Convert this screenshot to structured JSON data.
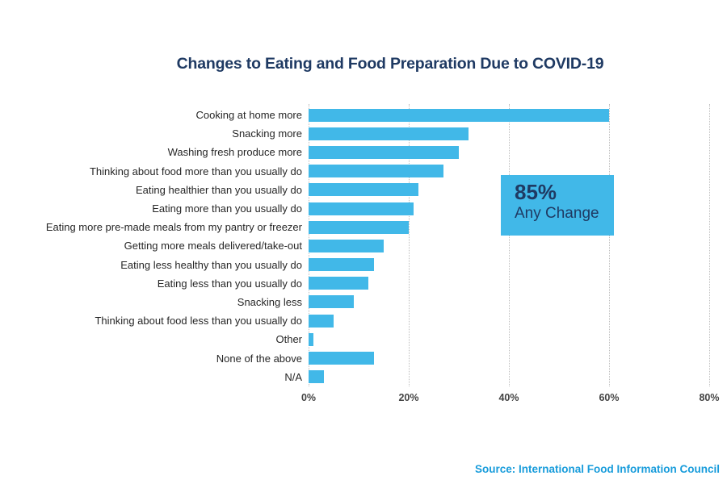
{
  "title": "Changes to Eating and Food Preparation Due to COVID-19",
  "source": "Source: International Food Information Council",
  "callout": {
    "value": "85%",
    "label": "Any Change"
  },
  "colors": {
    "bar": "#41b8e8",
    "title": "#1f3a63",
    "label": "#262626",
    "tick": "#444444",
    "grid": "#bdbdbd",
    "callout_text": "#1f3a63",
    "source": "#189cdb"
  },
  "chart_data": {
    "type": "bar",
    "orientation": "horizontal",
    "title": "Changes to Eating and Food Preparation Due to COVID-19",
    "categories": [
      "Cooking at home more",
      "Snacking more",
      "Washing fresh produce more",
      "Thinking about food more than you usually do",
      "Eating healthier than you usually do",
      "Eating more than you usually do",
      "Eating more pre-made meals from my pantry or freezer",
      "Getting more meals delivered/take-out",
      "Eating less healthy than you usually do",
      "Eating less than you usually do",
      "Snacking less",
      "Thinking about food less than you usually do",
      "Other",
      "None of the above",
      "N/A"
    ],
    "values": [
      60,
      32,
      30,
      27,
      22,
      21,
      20,
      15,
      13,
      12,
      9,
      5,
      1,
      13,
      3
    ],
    "unit": "%",
    "xlabel": "",
    "ylabel": "",
    "xlim": [
      0,
      80
    ],
    "xtick_values": [
      0,
      20,
      40,
      60,
      80
    ],
    "xtick_labels": [
      "0%",
      "20%",
      "40%",
      "60%",
      "80%"
    ],
    "grid": "dotted-vertical",
    "legend": "none",
    "annotation": {
      "value": "85%",
      "label": "Any Change"
    }
  }
}
